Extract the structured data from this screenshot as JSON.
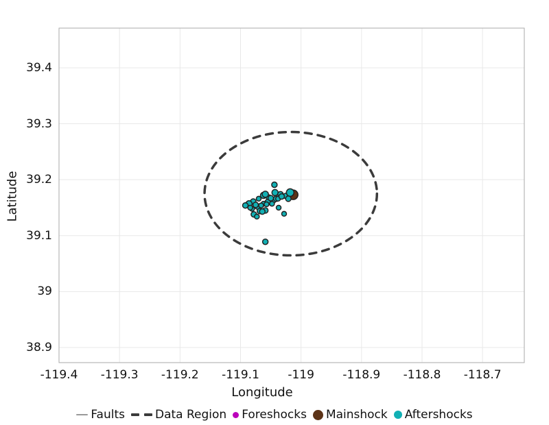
{
  "figure": {
    "background": "#ffffff",
    "border_color": "#aaaaaa",
    "grid_color": "#e8e8e8",
    "text_color": "#111111"
  },
  "chart_data": {
    "type": "scatter",
    "title": "",
    "xlabel": "Longitude",
    "ylabel": "Latitude",
    "xlim": [
      -119.4,
      -118.631
    ],
    "ylim": [
      38.873,
      39.471
    ],
    "grid": true,
    "legend_position": "bottom",
    "xticks": [
      -119.4,
      -119.3,
      -119.2,
      -119.1,
      -119.0,
      -118.9,
      -118.8,
      -118.7
    ],
    "xtick_labels": [
      "-119.4",
      "-119.3",
      "-119.2",
      "-119.1",
      "-119",
      "-118.9",
      "-118.8",
      "-118.7"
    ],
    "yticks": [
      39.4,
      39.3,
      39.2,
      39.1,
      39.0,
      38.9
    ],
    "ytick_labels": [
      "39.4",
      "39.3",
      "39.2",
      "39.1",
      "39",
      "38.9"
    ],
    "series": [
      {
        "name": "Faults",
        "type": "line",
        "color": "#999999",
        "points": []
      },
      {
        "name": "Data Region",
        "type": "ellipse",
        "color": "#3b3b3b",
        "dashed": true,
        "center": [
          -119.017,
          39.175
        ],
        "rx": 0.1425,
        "ry": 0.1103
      },
      {
        "name": "Foreshocks",
        "type": "scatter",
        "color": "#bb00bb",
        "points": []
      },
      {
        "name": "Mainshock",
        "type": "scatter",
        "color": "#5c3317",
        "stroke": "#222222",
        "points": [
          [
            -119.013,
            39.173,
            7
          ]
        ]
      },
      {
        "name": "Aftershocks",
        "type": "scatter",
        "color": "#12b0b4",
        "stroke": "#222222",
        "points": [
          [
            -119.044,
            39.191,
            4.0
          ],
          [
            -119.062,
            39.172,
            4.5
          ],
          [
            -119.053,
            39.168,
            4.0
          ],
          [
            -119.043,
            39.177,
            4.5
          ],
          [
            -119.034,
            39.174,
            4.0
          ],
          [
            -119.025,
            39.171,
            4.0
          ],
          [
            -119.018,
            39.177,
            5.5
          ],
          [
            -119.021,
            39.166,
            4.0
          ],
          [
            -119.07,
            39.166,
            3.5
          ],
          [
            -119.079,
            39.161,
            4.0
          ],
          [
            -119.086,
            39.157,
            4.5
          ],
          [
            -119.081,
            39.148,
            3.5
          ],
          [
            -119.072,
            39.152,
            4.0
          ],
          [
            -119.062,
            39.157,
            3.5
          ],
          [
            -119.055,
            39.16,
            4.0
          ],
          [
            -119.046,
            39.162,
            3.5
          ],
          [
            -119.078,
            39.138,
            4.0
          ],
          [
            -119.068,
            39.144,
            4.0
          ],
          [
            -119.059,
            39.145,
            4.0
          ],
          [
            -119.037,
            39.15,
            3.5
          ],
          [
            -119.028,
            39.139,
            3.5
          ],
          [
            -119.059,
            39.089,
            4.0
          ],
          [
            -119.059,
            39.174,
            4.5
          ],
          [
            -119.05,
            39.167,
            4.0
          ],
          [
            -119.041,
            39.166,
            4.0
          ],
          [
            -119.092,
            39.154,
            4.0
          ],
          [
            -119.084,
            39.15,
            3.5
          ],
          [
            -119.075,
            39.155,
            4.0
          ],
          [
            -119.066,
            39.154,
            3.5
          ],
          [
            -119.057,
            39.156,
            3.5
          ],
          [
            -119.048,
            39.157,
            3.5
          ],
          [
            -119.038,
            39.166,
            3.5
          ],
          [
            -119.064,
            39.143,
            4.0
          ],
          [
            -119.073,
            39.134,
            3.5
          ],
          [
            -119.032,
            39.17,
            4.0
          ]
        ]
      }
    ]
  },
  "legend": {
    "items": [
      {
        "label": "Faults",
        "marker": "line",
        "color": "#999999",
        "size": 17
      },
      {
        "label": "Data Region",
        "marker": "dashes",
        "color": "#3b3b3b",
        "size": 12
      },
      {
        "label": "Foreshocks",
        "marker": "dot",
        "color": "#bb00bb",
        "size": 9
      },
      {
        "label": "Mainshock",
        "marker": "dot",
        "color": "#5c3317",
        "size": 15
      },
      {
        "label": "Aftershocks",
        "marker": "dot",
        "color": "#12b0b4",
        "size": 12
      }
    ]
  }
}
